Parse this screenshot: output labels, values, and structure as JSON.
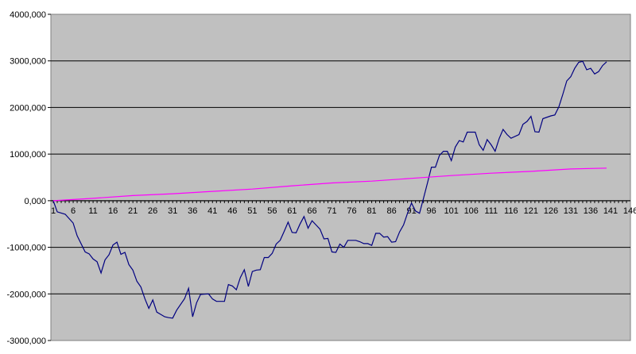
{
  "chart_data": {
    "type": "line",
    "x": {
      "start": 1,
      "end": 150
    },
    "xtick_labels": [
      "1",
      "6",
      "11",
      "16",
      "21",
      "26",
      "31",
      "36",
      "41",
      "46",
      "51",
      "56",
      "61",
      "66",
      "71",
      "76",
      "81",
      "86",
      "91",
      "96",
      "101",
      "106",
      "111",
      "116",
      "121",
      "126",
      "131",
      "136",
      "141",
      "146"
    ],
    "xtick_values": [
      1,
      6,
      11,
      16,
      21,
      26,
      31,
      36,
      41,
      46,
      51,
      56,
      61,
      66,
      71,
      76,
      81,
      86,
      91,
      96,
      101,
      106,
      111,
      116,
      121,
      126,
      131,
      136,
      141,
      146
    ],
    "ytick_labels": [
      "4000,000",
      "3000,000",
      "2000,000",
      "1000,000",
      "0,000",
      "-1000,000",
      "-2000,000",
      "-3000,000"
    ],
    "ytick_values": [
      4000,
      3000,
      2000,
      1000,
      0,
      -1000,
      -2000,
      -3000
    ],
    "ylim": [
      -3000,
      4000
    ],
    "grid": "horizontal",
    "plot_background": "#c0c0c0",
    "series": [
      {
        "color": "#000080",
        "points": [
          [
            1,
            0
          ],
          [
            2,
            -240
          ],
          [
            4,
            -290
          ],
          [
            6,
            -480
          ],
          [
            7,
            -750
          ],
          [
            9,
            -1100
          ],
          [
            10,
            -1140
          ],
          [
            11,
            -1250
          ],
          [
            12,
            -1310
          ],
          [
            13,
            -1550
          ],
          [
            14,
            -1270
          ],
          [
            15,
            -1160
          ],
          [
            16,
            -950
          ],
          [
            17,
            -890
          ],
          [
            18,
            -1150
          ],
          [
            19,
            -1110
          ],
          [
            20,
            -1370
          ],
          [
            21,
            -1490
          ],
          [
            22,
            -1730
          ],
          [
            23,
            -1850
          ],
          [
            24,
            -2100
          ],
          [
            25,
            -2310
          ],
          [
            26,
            -2130
          ],
          [
            27,
            -2390
          ],
          [
            28,
            -2440
          ],
          [
            29,
            -2490
          ],
          [
            30,
            -2510
          ],
          [
            31,
            -2520
          ],
          [
            32,
            -2350
          ],
          [
            34,
            -2100
          ],
          [
            35,
            -1880
          ],
          [
            36,
            -2490
          ],
          [
            37,
            -2190
          ],
          [
            38,
            -2010
          ],
          [
            40,
            -2000
          ],
          [
            41,
            -2110
          ],
          [
            42,
            -2160
          ],
          [
            44,
            -2160
          ],
          [
            45,
            -1800
          ],
          [
            46,
            -1830
          ],
          [
            47,
            -1910
          ],
          [
            48,
            -1650
          ],
          [
            49,
            -1480
          ],
          [
            50,
            -1840
          ],
          [
            51,
            -1520
          ],
          [
            52,
            -1490
          ],
          [
            53,
            -1480
          ],
          [
            54,
            -1220
          ],
          [
            55,
            -1220
          ],
          [
            56,
            -1130
          ],
          [
            57,
            -930
          ],
          [
            58,
            -850
          ],
          [
            59,
            -660
          ],
          [
            60,
            -460
          ],
          [
            61,
            -680
          ],
          [
            62,
            -690
          ],
          [
            63,
            -500
          ],
          [
            64,
            -340
          ],
          [
            65,
            -590
          ],
          [
            66,
            -430
          ],
          [
            67,
            -520
          ],
          [
            68,
            -610
          ],
          [
            69,
            -820
          ],
          [
            70,
            -810
          ],
          [
            71,
            -1100
          ],
          [
            72,
            -1110
          ],
          [
            73,
            -930
          ],
          [
            74,
            -1000
          ],
          [
            75,
            -850
          ],
          [
            77,
            -850
          ],
          [
            78,
            -880
          ],
          [
            79,
            -920
          ],
          [
            80,
            -920
          ],
          [
            81,
            -960
          ],
          [
            82,
            -700
          ],
          [
            83,
            -700
          ],
          [
            84,
            -780
          ],
          [
            85,
            -770
          ],
          [
            86,
            -890
          ],
          [
            87,
            -880
          ],
          [
            88,
            -670
          ],
          [
            89,
            -520
          ],
          [
            90,
            -270
          ],
          [
            91,
            -50
          ],
          [
            92,
            -220
          ],
          [
            93,
            -270
          ],
          [
            94,
            50
          ],
          [
            95,
            380
          ],
          [
            96,
            720
          ],
          [
            97,
            720
          ],
          [
            98,
            970
          ],
          [
            99,
            1060
          ],
          [
            100,
            1060
          ],
          [
            101,
            860
          ],
          [
            102,
            1150
          ],
          [
            103,
            1290
          ],
          [
            104,
            1260
          ],
          [
            105,
            1470
          ],
          [
            107,
            1470
          ],
          [
            108,
            1200
          ],
          [
            109,
            1080
          ],
          [
            110,
            1310
          ],
          [
            111,
            1200
          ],
          [
            112,
            1060
          ],
          [
            113,
            1330
          ],
          [
            114,
            1530
          ],
          [
            115,
            1420
          ],
          [
            116,
            1340
          ],
          [
            118,
            1420
          ],
          [
            119,
            1640
          ],
          [
            120,
            1700
          ],
          [
            121,
            1810
          ],
          [
            122,
            1480
          ],
          [
            123,
            1470
          ],
          [
            124,
            1760
          ],
          [
            126,
            1820
          ],
          [
            127,
            1840
          ],
          [
            128,
            2010
          ],
          [
            129,
            2280
          ],
          [
            130,
            2570
          ],
          [
            131,
            2660
          ],
          [
            132,
            2840
          ],
          [
            133,
            2970
          ],
          [
            134,
            2990
          ],
          [
            135,
            2810
          ],
          [
            136,
            2840
          ],
          [
            137,
            2720
          ],
          [
            138,
            2770
          ],
          [
            139,
            2900
          ],
          [
            140,
            2980
          ]
        ]
      },
      {
        "color": "#ff00ff",
        "points": [
          [
            1,
            0
          ],
          [
            11,
            50
          ],
          [
            21,
            110
          ],
          [
            31,
            150
          ],
          [
            41,
            200
          ],
          [
            51,
            250
          ],
          [
            61,
            320
          ],
          [
            71,
            380
          ],
          [
            81,
            420
          ],
          [
            91,
            480
          ],
          [
            101,
            540
          ],
          [
            111,
            590
          ],
          [
            121,
            630
          ],
          [
            131,
            680
          ],
          [
            140,
            700
          ]
        ]
      }
    ]
  }
}
